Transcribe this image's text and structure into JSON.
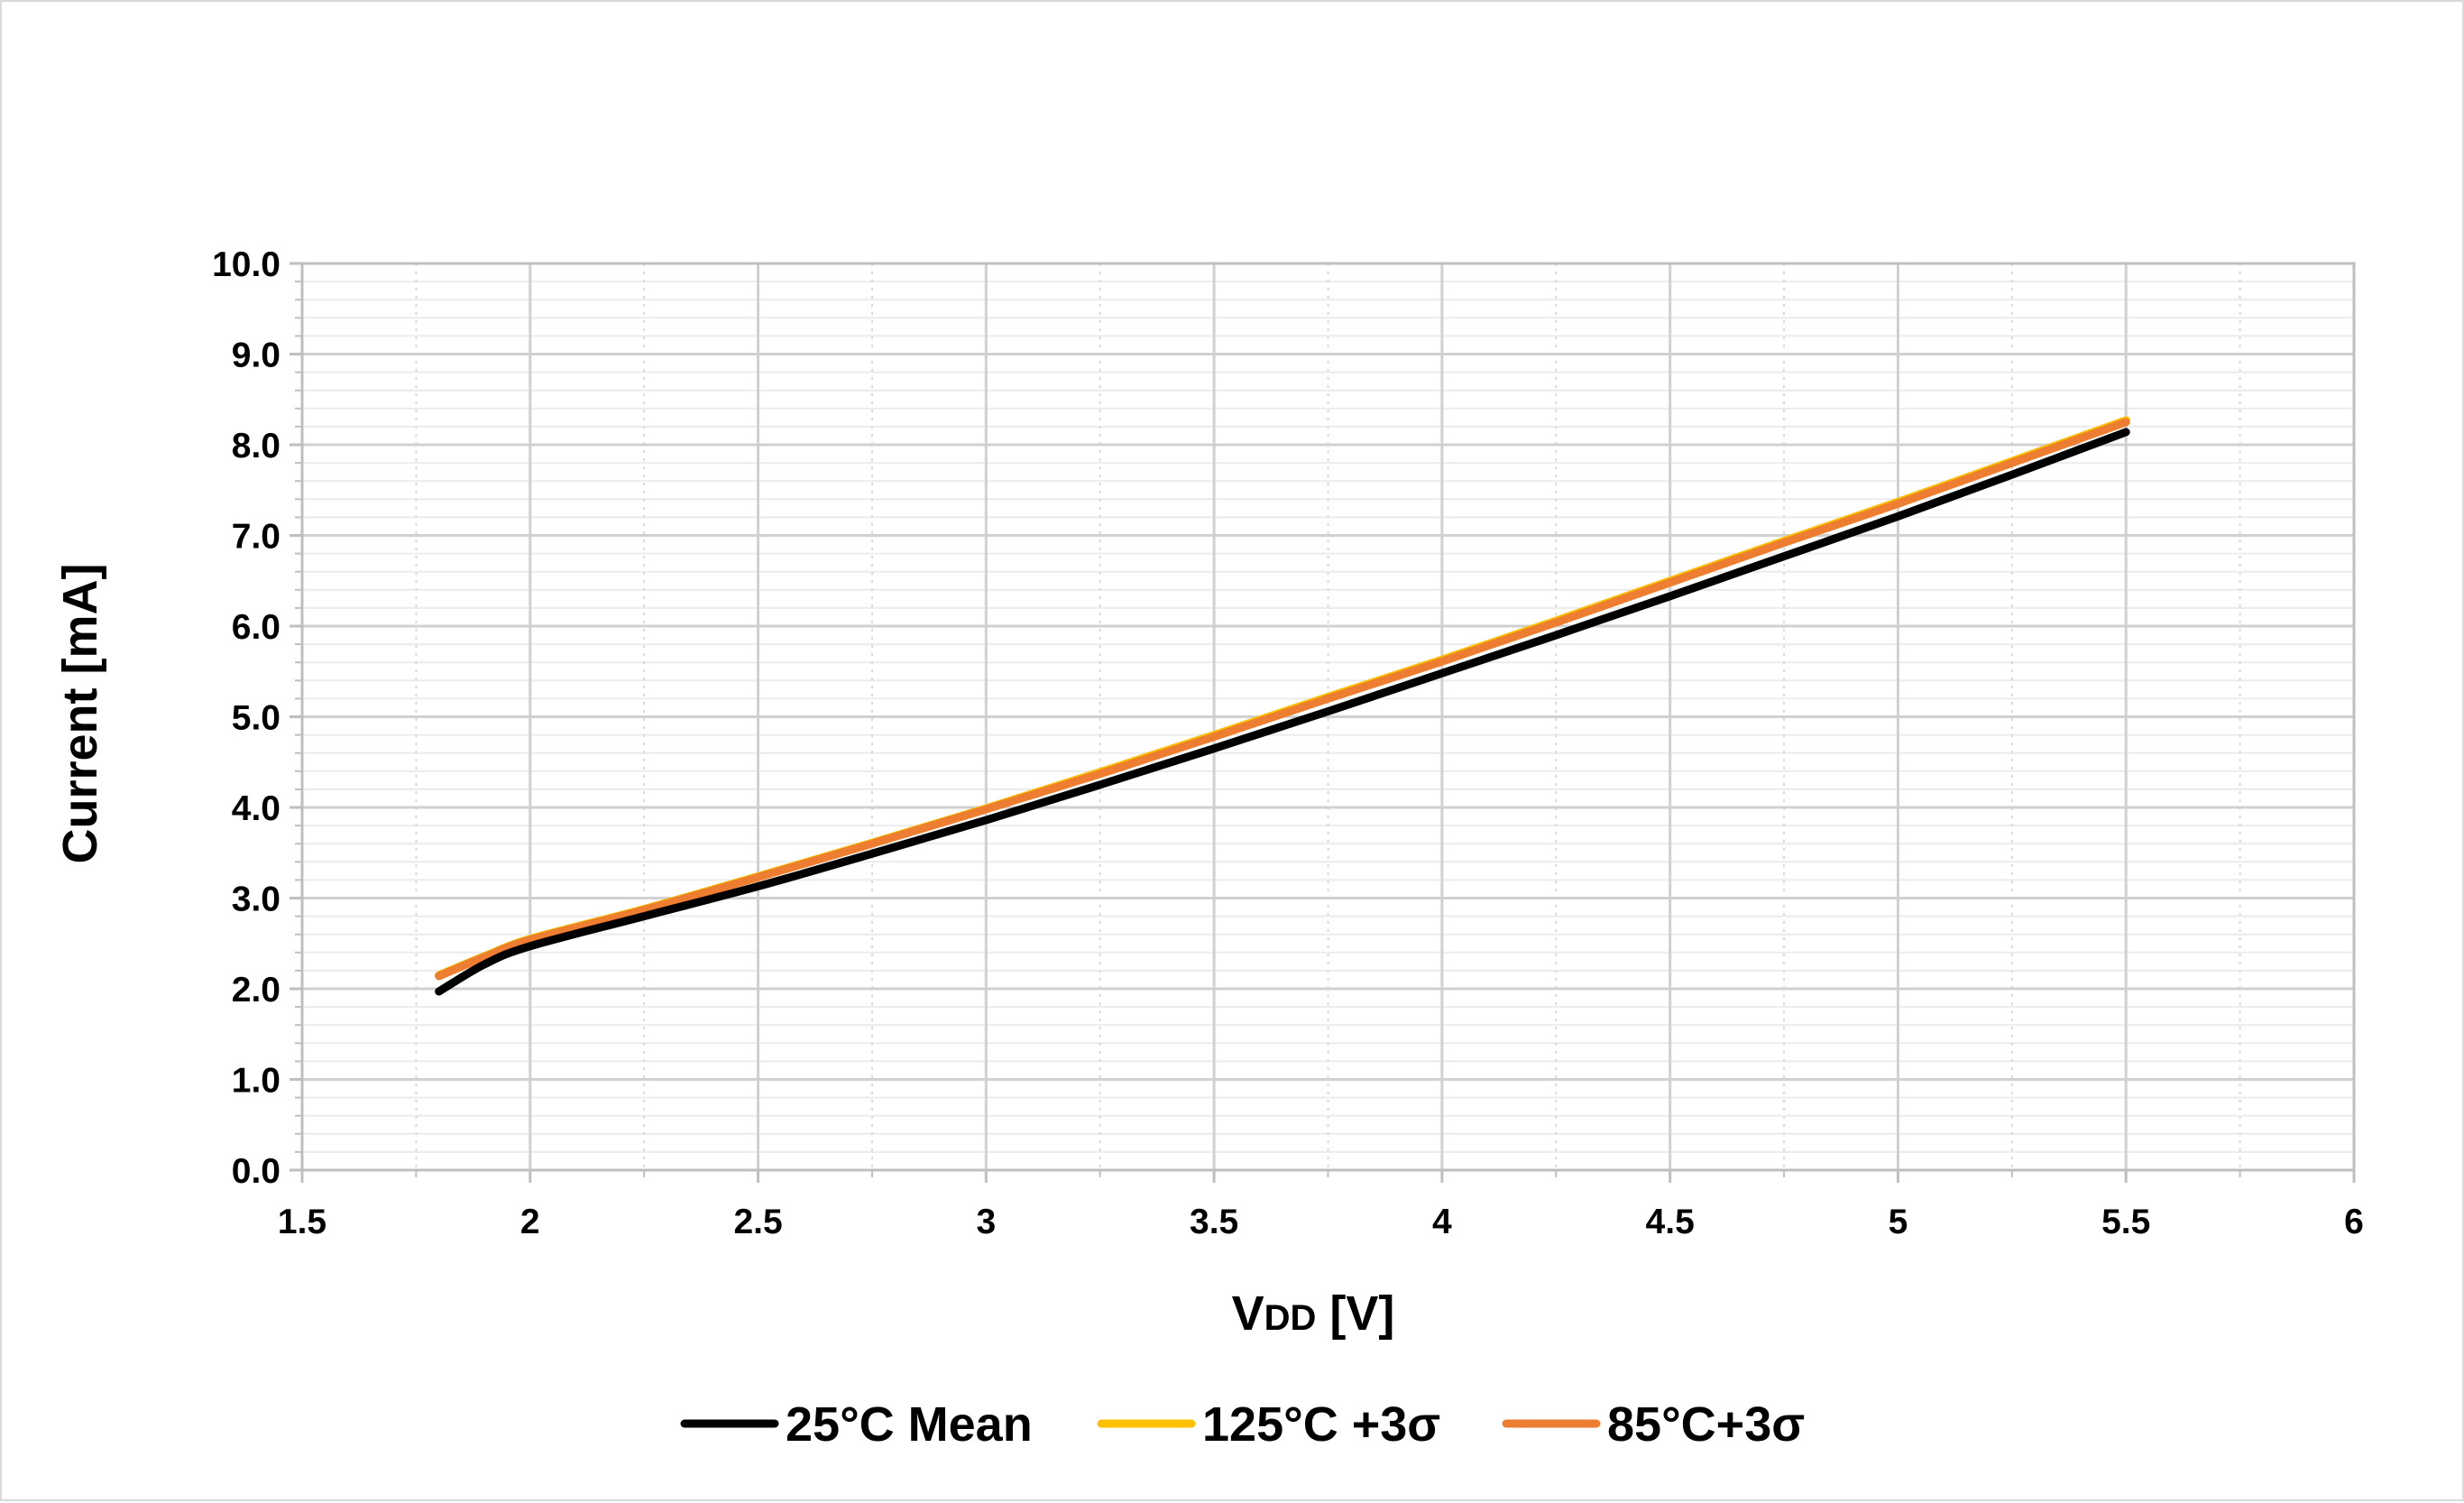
{
  "chart_data": {
    "type": "line",
    "title": "",
    "xlabel": "VDD [V]",
    "xlabel_main": "V",
    "xlabel_sub": "DD",
    "xlabel_rest": " [V]",
    "ylabel": "Current [mA]",
    "xlim": [
      1.5,
      6
    ],
    "ylim": [
      0,
      10
    ],
    "x_major_step": 0.5,
    "x_minor_step": 0.25,
    "y_major_step": 1,
    "y_minor_step": 0.2,
    "x_tick_labels": [
      "1.5",
      "2",
      "2.5",
      "3",
      "3.5",
      "4",
      "4.5",
      "5",
      "5.5",
      "6"
    ],
    "y_tick_labels": [
      "0.0",
      "1.0",
      "2.0",
      "3.0",
      "4.0",
      "5.0",
      "6.0",
      "7.0",
      "8.0",
      "9.0",
      "10.0"
    ],
    "grid": true,
    "legend_position": "bottom",
    "x": [
      1.8,
      1.9,
      2.0,
      2.25,
      2.5,
      2.75,
      3.0,
      3.25,
      3.5,
      3.75,
      4.0,
      4.25,
      4.5,
      4.75,
      5.0,
      5.25,
      5.5
    ],
    "series": [
      {
        "name": "125°C +3σ",
        "color": "#FFC000",
        "values": [
          2.15,
          2.36,
          2.55,
          2.88,
          3.24,
          3.61,
          3.99,
          4.39,
          4.8,
          5.22,
          5.63,
          6.06,
          6.5,
          6.94,
          7.37,
          7.82,
          8.27
        ]
      },
      {
        "name": "85°C+3σ",
        "color": "#ED7D31",
        "values": [
          2.14,
          2.35,
          2.54,
          2.87,
          3.23,
          3.6,
          3.98,
          4.37,
          4.78,
          5.2,
          5.61,
          6.04,
          6.48,
          6.92,
          7.35,
          7.8,
          8.25
        ]
      },
      {
        "name": "25°C Mean",
        "color": "#000000",
        "values": [
          1.97,
          2.27,
          2.47,
          2.8,
          3.13,
          3.49,
          3.86,
          4.25,
          4.65,
          5.06,
          5.48,
          5.9,
          6.33,
          6.77,
          7.21,
          7.67,
          8.14
        ]
      }
    ],
    "legend_order": [
      2,
      0,
      1
    ]
  }
}
